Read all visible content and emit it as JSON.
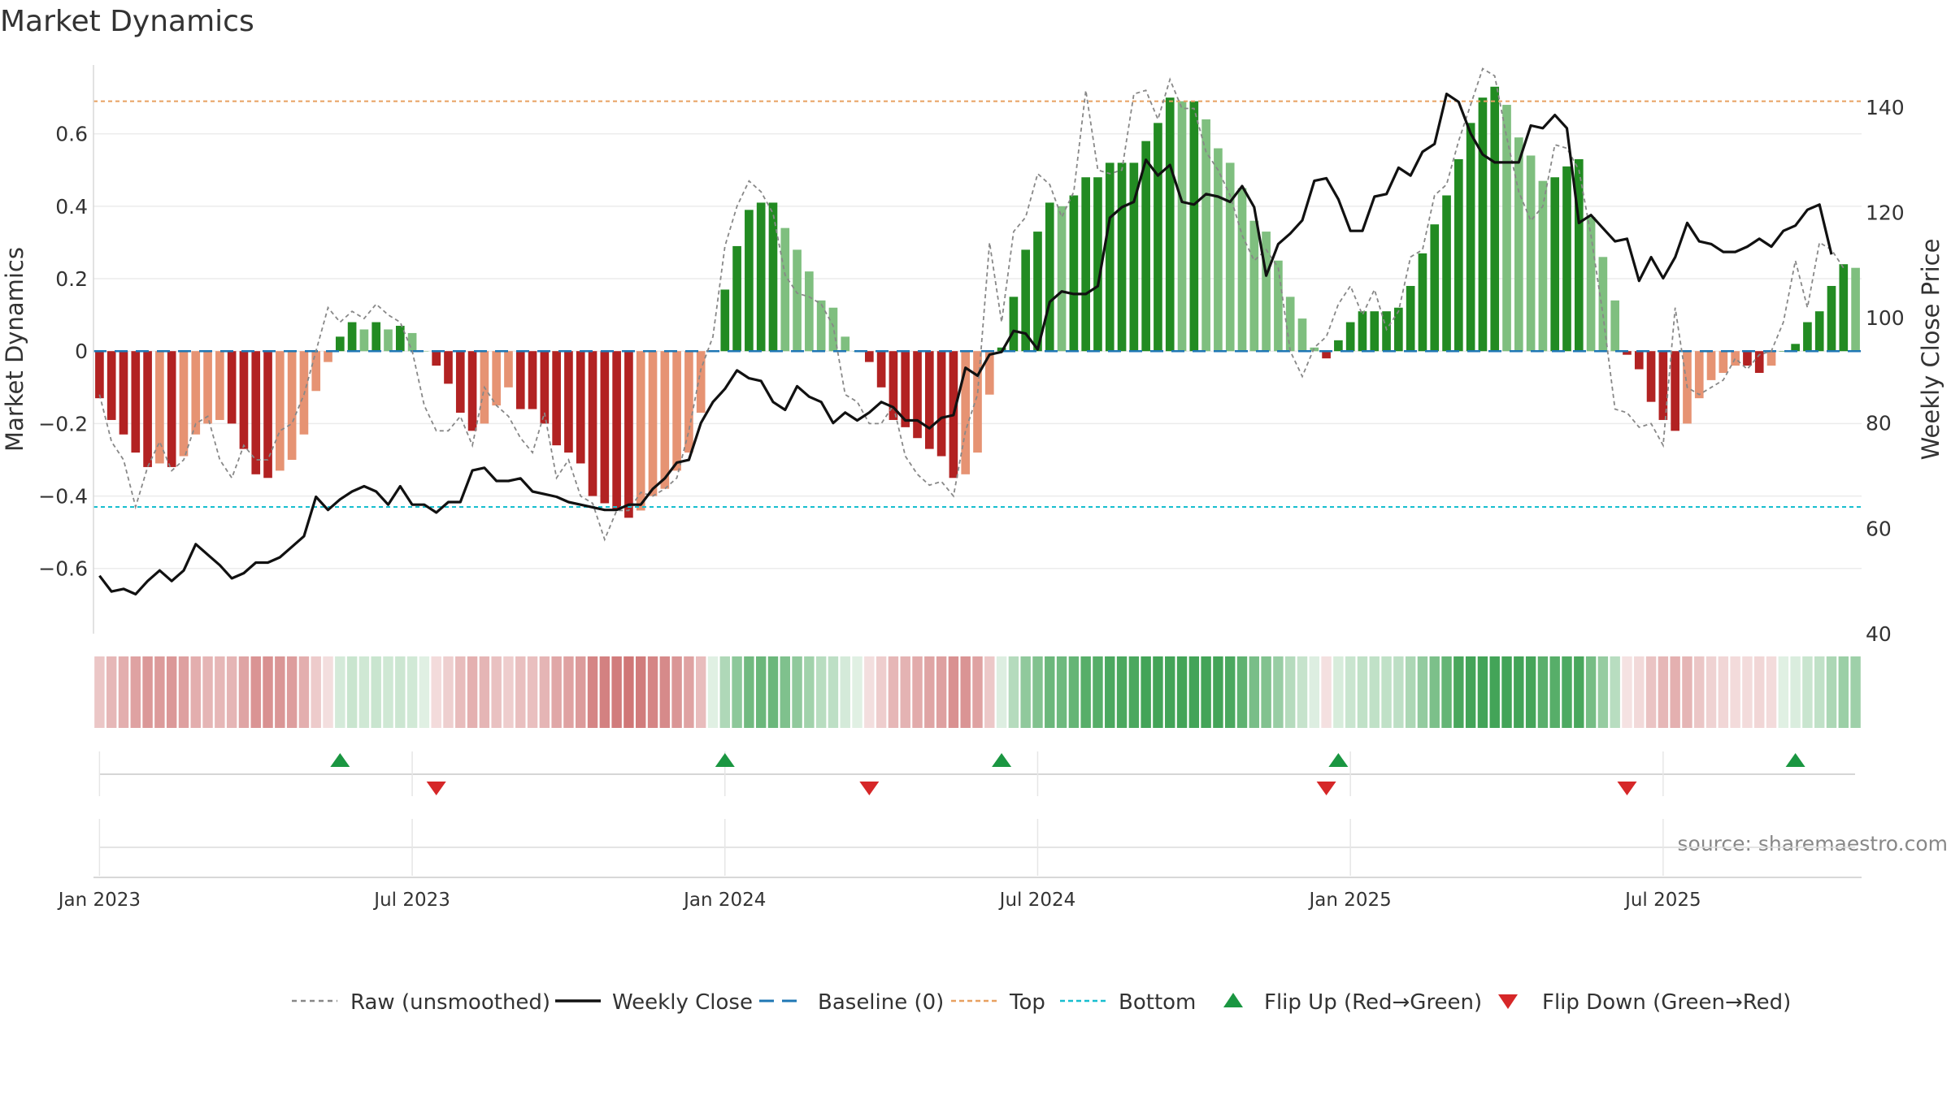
{
  "title": "Market Dynamics",
  "source": "source: sharemaestro.com",
  "colors": {
    "strong_green": "#228b22",
    "light_green": "#7fbf7f",
    "strong_red": "#b22222",
    "light_red": "#e69373",
    "close_line": "#111111",
    "raw_line": "#888888",
    "baseline": "#1f77b4",
    "top_line": "#e8a060",
    "bottom_line": "#17becf",
    "flip_up": "#1a9641",
    "flip_down": "#d62728"
  },
  "legend": {
    "raw": "Raw (unsmoothed)",
    "close": "Weekly Close",
    "baseline": "Baseline (0)",
    "top": "Top",
    "bottom": "Bottom",
    "flip_up": "Flip Up (Red→Green)",
    "flip_down": "Flip Down (Green→Red)"
  },
  "chart_data": {
    "type": "bar",
    "title": "Market Dynamics",
    "ylabel": "Market Dynamics",
    "y2label": "Weekly Close Price",
    "ylim": [
      -0.78,
      0.79
    ],
    "y2lim": [
      40,
      148
    ],
    "yticks": [
      "−0.6",
      "−0.4",
      "−0.2",
      "0",
      "0.2",
      "0.4",
      "0.6"
    ],
    "ytick_values": [
      -0.6,
      -0.4,
      -0.2,
      0,
      0.2,
      0.4,
      0.6
    ],
    "y2ticks": [
      "40",
      "60",
      "80",
      "100",
      "120",
      "140"
    ],
    "y2tick_values": [
      40,
      60,
      80,
      100,
      120,
      140
    ],
    "xticks": [
      "Jan 2023",
      "Jul 2023",
      "Jan 2024",
      "Jul 2024",
      "Jan 2025",
      "Jul 2025"
    ],
    "xtick_weeks": [
      0.5,
      26.5,
      52.5,
      78.5,
      104.5,
      130.5
    ],
    "x_start": "2022-12-26",
    "top_level": 0.69,
    "bottom_level": -0.43,
    "baseline": 0,
    "grid": true,
    "legend_position": "bottom",
    "dynamics": [
      -0.13,
      -0.19,
      -0.23,
      -0.28,
      -0.32,
      -0.31,
      -0.32,
      -0.29,
      -0.23,
      -0.2,
      -0.19,
      -0.2,
      -0.27,
      -0.34,
      -0.35,
      -0.33,
      -0.3,
      -0.23,
      -0.11,
      -0.03,
      0.04,
      0.08,
      0.06,
      0.08,
      0.06,
      0.07,
      0.05,
      0.0,
      -0.04,
      -0.09,
      -0.17,
      -0.22,
      -0.2,
      -0.15,
      -0.1,
      -0.16,
      -0.16,
      -0.2,
      -0.26,
      -0.28,
      -0.31,
      -0.4,
      -0.42,
      -0.44,
      -0.46,
      -0.44,
      -0.4,
      -0.38,
      -0.33,
      -0.28,
      -0.17,
      0.0,
      0.17,
      0.29,
      0.39,
      0.41,
      0.41,
      0.34,
      0.28,
      0.22,
      0.14,
      0.12,
      0.04,
      0.0,
      -0.03,
      -0.1,
      -0.19,
      -0.21,
      -0.24,
      -0.27,
      -0.29,
      -0.35,
      -0.34,
      -0.28,
      -0.12,
      0.01,
      0.15,
      0.28,
      0.33,
      0.41,
      0.4,
      0.43,
      0.48,
      0.48,
      0.52,
      0.52,
      0.52,
      0.58,
      0.63,
      0.7,
      0.69,
      0.69,
      0.64,
      0.56,
      0.52,
      0.45,
      0.36,
      0.33,
      0.25,
      0.15,
      0.09,
      0.01,
      -0.02,
      0.03,
      0.08,
      0.11,
      0.11,
      0.11,
      0.12,
      0.18,
      0.27,
      0.35,
      0.43,
      0.53,
      0.63,
      0.7,
      0.73,
      0.68,
      0.59,
      0.54,
      0.47,
      0.48,
      0.51,
      0.53,
      0.37,
      0.26,
      0.14,
      -0.01,
      -0.05,
      -0.14,
      -0.19,
      -0.22,
      -0.2,
      -0.13,
      -0.08,
      -0.06,
      -0.04,
      -0.04,
      -0.06,
      -0.04,
      0.0,
      0.02,
      0.08,
      0.11,
      0.18,
      0.24,
      0.23
    ],
    "raw": [
      -0.12,
      -0.25,
      -0.3,
      -0.43,
      -0.32,
      -0.25,
      -0.33,
      -0.3,
      -0.2,
      -0.18,
      -0.3,
      -0.35,
      -0.26,
      -0.3,
      -0.3,
      -0.22,
      -0.2,
      -0.12,
      0.0,
      0.12,
      0.08,
      0.11,
      0.09,
      0.13,
      0.1,
      0.08,
      0.0,
      -0.15,
      -0.22,
      -0.22,
      -0.18,
      -0.26,
      -0.1,
      -0.15,
      -0.18,
      -0.24,
      -0.28,
      -0.17,
      -0.35,
      -0.3,
      -0.4,
      -0.42,
      -0.52,
      -0.44,
      -0.44,
      -0.39,
      -0.4,
      -0.38,
      -0.35,
      -0.22,
      -0.05,
      0.04,
      0.29,
      0.4,
      0.47,
      0.44,
      0.38,
      0.21,
      0.16,
      0.15,
      0.13,
      0.07,
      -0.12,
      -0.14,
      -0.2,
      -0.2,
      -0.15,
      -0.29,
      -0.34,
      -0.37,
      -0.36,
      -0.4,
      -0.22,
      -0.12,
      0.3,
      0.08,
      0.33,
      0.37,
      0.49,
      0.46,
      0.37,
      0.44,
      0.72,
      0.5,
      0.49,
      0.5,
      0.71,
      0.72,
      0.64,
      0.75,
      0.67,
      0.67,
      0.55,
      0.5,
      0.43,
      0.32,
      0.25,
      0.28,
      0.23,
      0.0,
      -0.07,
      0.01,
      0.04,
      0.13,
      0.18,
      0.1,
      0.17,
      0.06,
      0.11,
      0.26,
      0.28,
      0.43,
      0.46,
      0.58,
      0.68,
      0.78,
      0.76,
      0.59,
      0.44,
      0.36,
      0.4,
      0.57,
      0.56,
      0.5,
      0.32,
      0.1,
      -0.16,
      -0.17,
      -0.21,
      -0.2,
      -0.26,
      0.12,
      -0.1,
      -0.12,
      -0.1,
      -0.08,
      -0.02,
      -0.05,
      -0.01,
      0.0,
      0.08,
      0.25,
      0.12,
      0.3,
      0.28,
      0.23
    ],
    "close": [
      51,
      48,
      48.5,
      47.5,
      50,
      52,
      50,
      52,
      57,
      55,
      53,
      50.5,
      51.5,
      53.5,
      53.5,
      54.5,
      56.5,
      58.5,
      66,
      63.5,
      65.5,
      67,
      68,
      67,
      64.5,
      68,
      64.5,
      64.5,
      63,
      65,
      65,
      71,
      71.5,
      69,
      69,
      69.5,
      67,
      66.5,
      66,
      65,
      64.5,
      64,
      63.5,
      63.5,
      64.5,
      64.5,
      67.5,
      69.5,
      72.5,
      73,
      80,
      84,
      86.5,
      90,
      88.5,
      88,
      84,
      82.5,
      87,
      85,
      84,
      80,
      82,
      80.5,
      82,
      84,
      83,
      80.5,
      80.5,
      79,
      81,
      81.5,
      90.5,
      89,
      93,
      93.5,
      97.5,
      97,
      94,
      103,
      105,
      104.5,
      104.5,
      106,
      119,
      121,
      122,
      130,
      127,
      129,
      122,
      121.5,
      123.5,
      123,
      122,
      125,
      121,
      108,
      114,
      116,
      118.5,
      126,
      126.5,
      122.5,
      116.5,
      116.5,
      123,
      123.5,
      128.5,
      127,
      131.5,
      133,
      142.5,
      141,
      135,
      131,
      129.5,
      129.5,
      129.5,
      136.5,
      136,
      138.5,
      136,
      118,
      119.5,
      117,
      114.5,
      115,
      107,
      111.5,
      107.5,
      111.5,
      118,
      114.5,
      114,
      112.5,
      112.5,
      113.5,
      115,
      113.5,
      116.5,
      117.5,
      120.5,
      121.5,
      112
    ]
  }
}
